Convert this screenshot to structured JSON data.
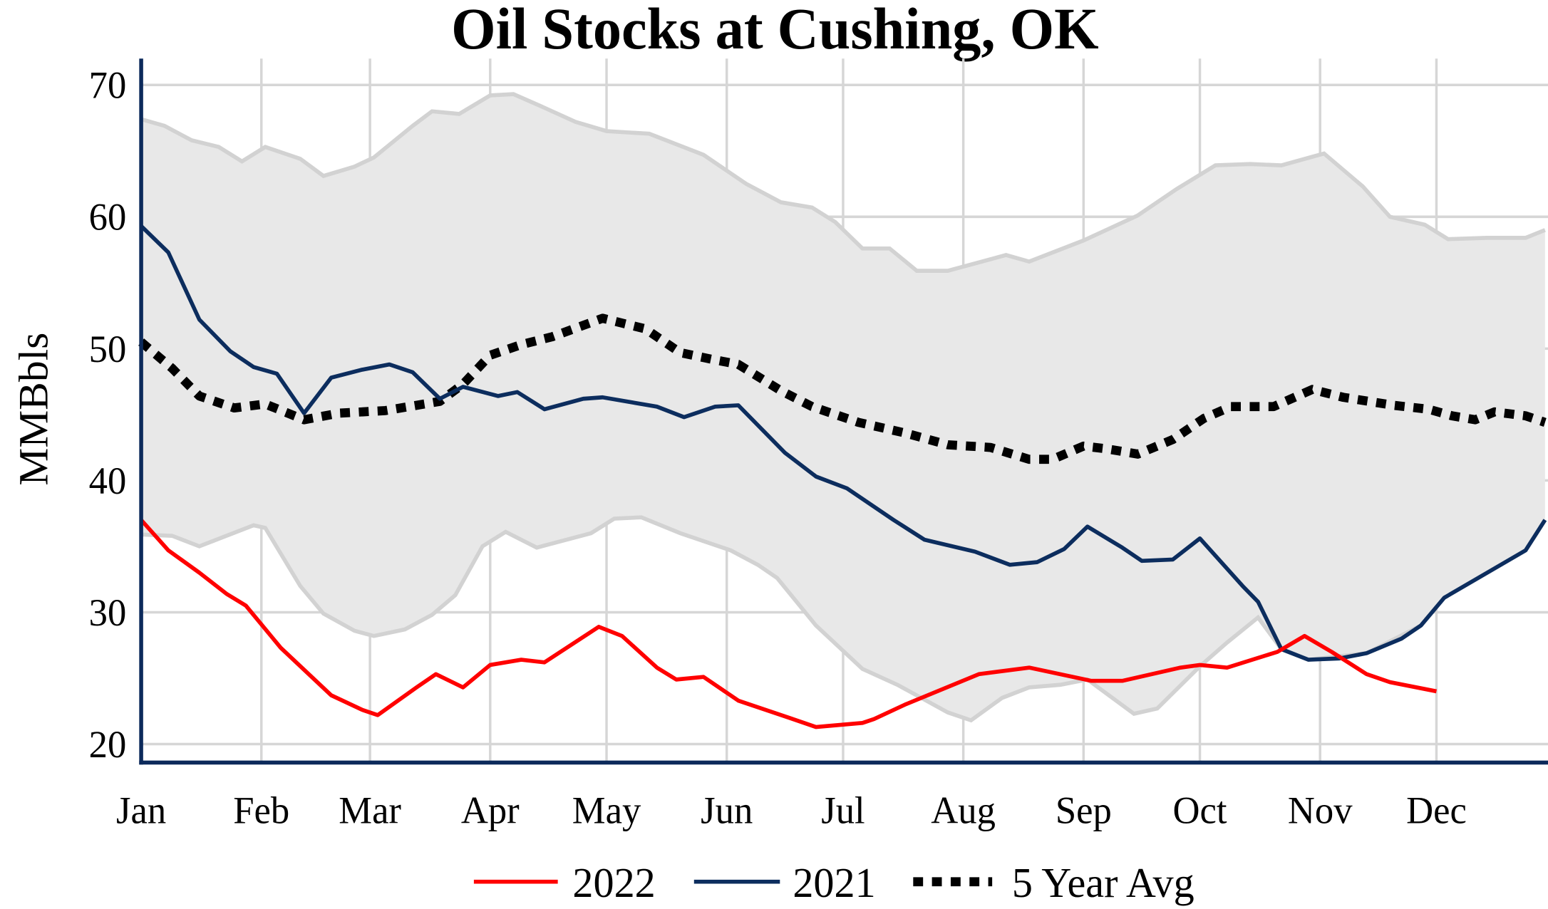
{
  "chart_data": {
    "type": "line",
    "title": "Oil Stocks at Cushing, OK",
    "xlabel": "",
    "ylabel": "MMBbls",
    "ylim": [
      18.6,
      72
    ],
    "yticks": [
      20,
      30,
      40,
      50,
      60,
      70
    ],
    "xticks": [
      {
        "date": "01-01",
        "label": "Jan"
      },
      {
        "date": "02-01",
        "label": "Feb"
      },
      {
        "date": "03-01",
        "label": "Mar"
      },
      {
        "date": "04-01",
        "label": "Apr"
      },
      {
        "date": "05-01",
        "label": "May"
      },
      {
        "date": "06-01",
        "label": "Jun"
      },
      {
        "date": "07-01",
        "label": "Jul"
      },
      {
        "date": "08-01",
        "label": "Aug"
      },
      {
        "date": "09-01",
        "label": "Sep"
      },
      {
        "date": "10-01",
        "label": "Oct"
      },
      {
        "date": "11-01",
        "label": "Nov"
      },
      {
        "date": "12-01",
        "label": "Dec"
      }
    ],
    "xlim": [
      "01-01",
      "12-29"
    ],
    "grid": true,
    "legend_position": "bottom",
    "colors": {
      "band_fill": "#e8e8e8",
      "band_edge": "#d2d2d2",
      "axis": "#0c2a5b",
      "grid": "#d6d6d6"
    },
    "range_band": {
      "upper": [
        [
          "01-01",
          67.4
        ],
        [
          "01-07",
          66.9
        ],
        [
          "01-14",
          65.8
        ],
        [
          "01-21",
          65.3
        ],
        [
          "01-27",
          64.2
        ],
        [
          "02-02",
          65.3
        ],
        [
          "02-11",
          64.4
        ],
        [
          "02-17",
          63.1
        ],
        [
          "02-25",
          63.8
        ],
        [
          "03-02",
          64.5
        ],
        [
          "03-12",
          66.9
        ],
        [
          "03-17",
          68.0
        ],
        [
          "03-24",
          67.8
        ],
        [
          "04-01",
          69.2
        ],
        [
          "04-07",
          69.3
        ],
        [
          "04-14",
          68.4
        ],
        [
          "04-23",
          67.2
        ],
        [
          "05-01",
          66.5
        ],
        [
          "05-12",
          66.3
        ],
        [
          "05-26",
          64.7
        ],
        [
          "06-06",
          62.5
        ],
        [
          "06-15",
          61.1
        ],
        [
          "06-23",
          60.7
        ],
        [
          "06-29",
          59.6
        ],
        [
          "07-06",
          57.6
        ],
        [
          "07-13",
          57.6
        ],
        [
          "07-20",
          55.9
        ],
        [
          "07-28",
          55.9
        ],
        [
          "08-12",
          57.1
        ],
        [
          "08-18",
          56.6
        ],
        [
          "09-01",
          58.2
        ],
        [
          "09-15",
          60.1
        ],
        [
          "09-25",
          62.1
        ],
        [
          "10-05",
          63.9
        ],
        [
          "10-14",
          64.0
        ],
        [
          "10-22",
          63.9
        ],
        [
          "11-02",
          64.8
        ],
        [
          "11-12",
          62.3
        ],
        [
          "11-19",
          60.0
        ],
        [
          "11-28",
          59.4
        ],
        [
          "12-04",
          58.3
        ],
        [
          "12-14",
          58.4
        ],
        [
          "12-24",
          58.4
        ],
        [
          "12-29",
          59.0
        ]
      ],
      "lower": [
        [
          "01-01",
          35.9
        ],
        [
          "01-09",
          35.8
        ],
        [
          "01-16",
          35.0
        ],
        [
          "01-30",
          36.6
        ],
        [
          "02-02",
          36.4
        ],
        [
          "02-11",
          32.0
        ],
        [
          "02-17",
          29.9
        ],
        [
          "02-25",
          28.6
        ],
        [
          "03-02",
          28.2
        ],
        [
          "03-10",
          28.7
        ],
        [
          "03-17",
          29.8
        ],
        [
          "03-23",
          31.3
        ],
        [
          "03-30",
          35.0
        ],
        [
          "04-05",
          36.1
        ],
        [
          "04-13",
          34.9
        ],
        [
          "04-27",
          36.0
        ],
        [
          "05-03",
          37.1
        ],
        [
          "05-10",
          37.2
        ],
        [
          "05-20",
          36.0
        ],
        [
          "06-02",
          34.7
        ],
        [
          "06-09",
          33.6
        ],
        [
          "06-14",
          32.6
        ],
        [
          "06-24",
          29.0
        ],
        [
          "07-06",
          25.7
        ],
        [
          "07-15",
          24.5
        ],
        [
          "07-28",
          22.4
        ],
        [
          "08-03",
          21.8
        ],
        [
          "08-11",
          23.5
        ],
        [
          "08-18",
          24.3
        ],
        [
          "08-26",
          24.5
        ],
        [
          "09-02",
          24.9
        ],
        [
          "09-14",
          22.3
        ],
        [
          "09-20",
          22.7
        ],
        [
          "10-01",
          25.9
        ],
        [
          "10-08",
          27.7
        ],
        [
          "10-16",
          29.6
        ],
        [
          "10-22",
          27.2
        ],
        [
          "10-29",
          26.4
        ],
        [
          "11-13",
          26.9
        ],
        [
          "11-27",
          29.0
        ],
        [
          "12-03",
          31.1
        ],
        [
          "12-24",
          34.7
        ],
        [
          "12-29",
          37.0
        ]
      ]
    },
    "series": [
      {
        "name": "2022",
        "color": "#ff0000",
        "style": "solid",
        "points": [
          [
            "01-01",
            37.0
          ],
          [
            "01-08",
            34.7
          ],
          [
            "01-16",
            33.0
          ],
          [
            "01-23",
            31.4
          ],
          [
            "01-28",
            30.5
          ],
          [
            "02-06",
            27.3
          ],
          [
            "02-19",
            23.7
          ],
          [
            "02-27",
            22.6
          ],
          [
            "03-03",
            22.2
          ],
          [
            "03-13",
            24.3
          ],
          [
            "03-18",
            25.3
          ],
          [
            "03-25",
            24.3
          ],
          [
            "04-01",
            26.0
          ],
          [
            "04-09",
            26.4
          ],
          [
            "04-15",
            26.2
          ],
          [
            "04-29",
            28.9
          ],
          [
            "05-05",
            28.2
          ],
          [
            "05-14",
            25.8
          ],
          [
            "05-19",
            24.9
          ],
          [
            "05-26",
            25.1
          ],
          [
            "06-04",
            23.3
          ],
          [
            "06-17",
            22.0
          ],
          [
            "06-24",
            21.3
          ],
          [
            "07-06",
            21.6
          ],
          [
            "07-09",
            21.9
          ],
          [
            "07-17",
            23.0
          ],
          [
            "08-05",
            25.3
          ],
          [
            "08-18",
            25.8
          ],
          [
            "09-03",
            24.8
          ],
          [
            "09-11",
            24.8
          ],
          [
            "09-26",
            25.8
          ],
          [
            "10-01",
            26.0
          ],
          [
            "10-08",
            25.8
          ],
          [
            "10-21",
            27.0
          ],
          [
            "10-28",
            28.2
          ],
          [
            "11-04",
            27.0
          ],
          [
            "11-13",
            25.3
          ],
          [
            "11-19",
            24.7
          ],
          [
            "12-01",
            24.0
          ]
        ]
      },
      {
        "name": "2021",
        "color": "#0c2d5e",
        "style": "solid",
        "points": [
          [
            "01-01",
            59.3
          ],
          [
            "01-08",
            57.3
          ],
          [
            "01-16",
            52.2
          ],
          [
            "01-24",
            49.8
          ],
          [
            "01-30",
            48.6
          ],
          [
            "02-05",
            48.1
          ],
          [
            "02-12",
            45.1
          ],
          [
            "02-19",
            47.8
          ],
          [
            "02-27",
            48.4
          ],
          [
            "03-06",
            48.8
          ],
          [
            "03-12",
            48.2
          ],
          [
            "03-19",
            46.2
          ],
          [
            "03-25",
            47.1
          ],
          [
            "04-03",
            46.4
          ],
          [
            "04-08",
            46.7
          ],
          [
            "04-15",
            45.4
          ],
          [
            "04-25",
            46.2
          ],
          [
            "04-30",
            46.3
          ],
          [
            "05-14",
            45.6
          ],
          [
            "05-21",
            44.8
          ],
          [
            "05-29",
            45.6
          ],
          [
            "06-04",
            45.7
          ],
          [
            "06-16",
            42.1
          ],
          [
            "06-24",
            40.3
          ],
          [
            "07-02",
            39.4
          ],
          [
            "07-14",
            37.0
          ],
          [
            "07-22",
            35.5
          ],
          [
            "08-04",
            34.6
          ],
          [
            "08-13",
            33.6
          ],
          [
            "08-20",
            33.8
          ],
          [
            "08-27",
            34.8
          ],
          [
            "09-02",
            36.5
          ],
          [
            "09-11",
            34.9
          ],
          [
            "09-16",
            33.9
          ],
          [
            "09-24",
            34.0
          ],
          [
            "10-01",
            35.6
          ],
          [
            "10-12",
            32.0
          ],
          [
            "10-16",
            30.8
          ],
          [
            "10-22",
            27.2
          ],
          [
            "10-29",
            26.4
          ],
          [
            "11-06",
            26.5
          ],
          [
            "11-13",
            26.9
          ],
          [
            "11-22",
            28.0
          ],
          [
            "11-27",
            29.0
          ],
          [
            "12-03",
            31.1
          ],
          [
            "12-24",
            34.7
          ],
          [
            "12-29",
            37.0
          ]
        ]
      },
      {
        "name": "5 Year Avg",
        "color": "#000000",
        "style": "dotted",
        "points": [
          [
            "01-01",
            50.5
          ],
          [
            "01-09",
            48.5
          ],
          [
            "01-16",
            46.4
          ],
          [
            "01-25",
            45.5
          ],
          [
            "02-02",
            45.8
          ],
          [
            "02-12",
            44.6
          ],
          [
            "02-21",
            45.1
          ],
          [
            "03-05",
            45.3
          ],
          [
            "03-19",
            46.0
          ],
          [
            "03-25",
            47.3
          ],
          [
            "04-01",
            49.5
          ],
          [
            "04-09",
            50.3
          ],
          [
            "04-17",
            50.9
          ],
          [
            "04-30",
            52.3
          ],
          [
            "05-11",
            51.5
          ],
          [
            "05-20",
            49.7
          ],
          [
            "05-28",
            49.2
          ],
          [
            "06-04",
            48.8
          ],
          [
            "06-15",
            46.8
          ],
          [
            "06-23",
            45.6
          ],
          [
            "07-05",
            44.4
          ],
          [
            "07-17",
            43.6
          ],
          [
            "07-28",
            42.7
          ],
          [
            "08-08",
            42.5
          ],
          [
            "08-18",
            41.6
          ],
          [
            "08-24",
            41.6
          ],
          [
            "09-01",
            42.6
          ],
          [
            "09-07",
            42.4
          ],
          [
            "09-15",
            42.0
          ],
          [
            "09-24",
            43.1
          ],
          [
            "10-02",
            44.7
          ],
          [
            "10-09",
            45.6
          ],
          [
            "10-20",
            45.6
          ],
          [
            "10-30",
            46.9
          ],
          [
            "11-07",
            46.3
          ],
          [
            "11-20",
            45.7
          ],
          [
            "11-29",
            45.4
          ],
          [
            "12-05",
            44.9
          ],
          [
            "12-11",
            44.6
          ],
          [
            "12-16",
            45.2
          ],
          [
            "12-24",
            44.9
          ],
          [
            "12-29",
            44.4
          ]
        ]
      }
    ]
  }
}
